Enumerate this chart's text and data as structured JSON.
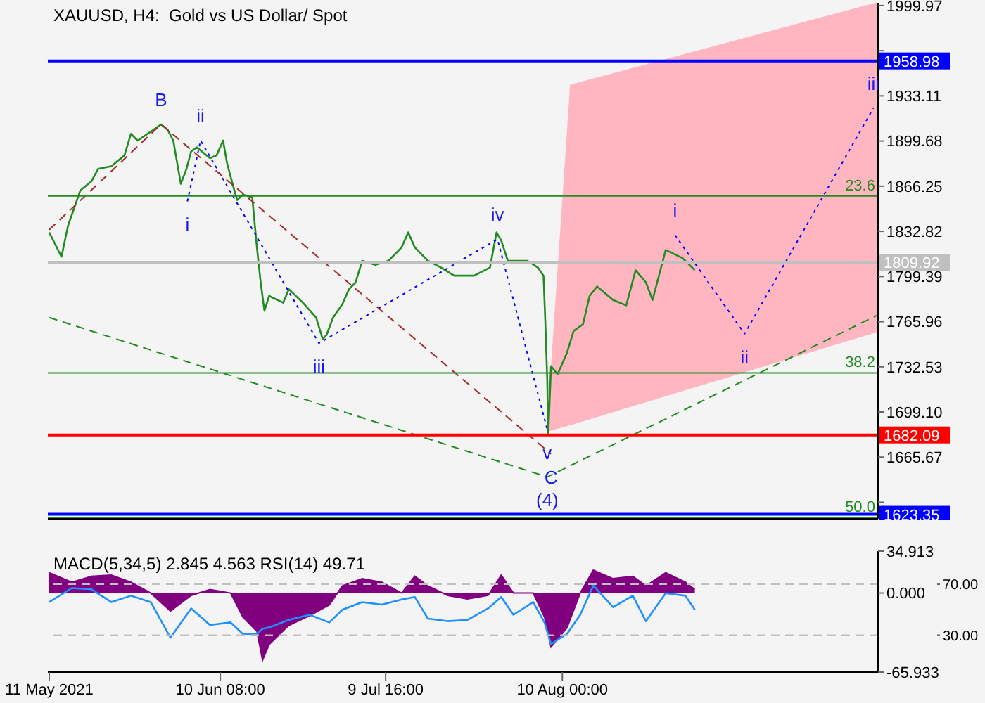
{
  "chart_data": [
    {
      "type": "line",
      "title": "XAUUSD, H4:  Gold vs US Dollar/ Spot",
      "xlim": [
        "2021-05-10T18:00",
        "2021-10-05T00:00"
      ],
      "ylim": [
        1620,
        2002
      ],
      "yticks": [
        1999.97,
        {
          "value": 1966.54,
          "label": null
        },
        1933.11,
        1899.68,
        1866.25,
        1832.82,
        1799.39,
        1765.96,
        1732.53,
        {
          "value": 1699.1,
          "label": "1699.10"
        },
        1665.67,
        {
          "value": 1632.24,
          "label": null
        }
      ],
      "tick_labels": "y",
      "grid": false,
      "series": [
        {
          "type": "area",
          "color": "#ffb6c1",
          "x": [
            "2021-08-07T08:00",
            "2021-08-11T12:00",
            "2021-10-05T00:00"
          ],
          "values": [
            null,
            null,
            null
          ],
          "lower": [
            1685,
            1690,
            1759
          ],
          "upper": [
            1685,
            1941,
            2002
          ]
        },
        {
          "color": "#228b22",
          "x": [
            "2021-05-11T00:00",
            "2021-05-13T04:00",
            "2021-05-14T08:00",
            "2021-05-15T16:00",
            "2021-05-16T12:00",
            "2021-05-18T12:00",
            "2021-05-19T16:00",
            "2021-05-22T00:00",
            "2021-05-24T08:00",
            "2021-05-25T12:00",
            "2021-05-26T16:00",
            "2021-05-29T12:00",
            "2021-05-30T20:00",
            "2021-06-01T00:00",
            "2021-06-02T00:00",
            "2021-06-02T16:00",
            "2021-06-03T08:00",
            "2021-06-04T08:00",
            "2021-06-05T04:00",
            "2021-06-06T04:00",
            "2021-06-08T12:00",
            "2021-06-09T16:00",
            "2021-06-10T20:00",
            "2021-06-11T12:00",
            "2021-06-12T12:00",
            "2021-06-13T08:00",
            "2021-06-14T08:00",
            "2021-06-16T00:00",
            "2021-06-16T20:00",
            "2021-06-17T12:00",
            "2021-06-18T04:00",
            "2021-06-19T00:00",
            "2021-06-21T12:00",
            "2021-06-22T12:00",
            "2021-06-25T00:00",
            "2021-06-27T08:00",
            "2021-06-28T12:00",
            "2021-06-29T04:00",
            "2021-06-30T08:00",
            "2021-07-02T00:00",
            "2021-07-03T04:00",
            "2021-07-04T08:00",
            "2021-07-05T12:00",
            "2021-07-07T20:00",
            "2021-07-10T04:00",
            "2021-07-12T12:00",
            "2021-07-13T16:00",
            "2021-07-14T20:00",
            "2021-07-17T04:00",
            "2021-07-19T12:00",
            "2021-07-21T20:00",
            "2021-07-25T08:00",
            "2021-07-28T04:00",
            "2021-07-29T08:00",
            "2021-07-30T04:00",
            "2021-07-31T08:00",
            "2021-08-03T20:00",
            "2021-08-05T16:00",
            "2021-08-06T16:00",
            "2021-08-07T00:00",
            "2021-08-07T08:00",
            "2021-08-07T12:00",
            "2021-08-08T00:00",
            "2021-08-09T04:00",
            "2021-08-10T20:00",
            "2021-08-12T00:00",
            "2021-08-13T16:00",
            "2021-08-14T20:00",
            "2021-08-16T04:00",
            "2021-08-19T00:00",
            "2021-08-21T08:00",
            "2021-08-23T00:00",
            "2021-08-24T20:00",
            "2021-08-26T00:00",
            "2021-08-28T08:00",
            "2021-08-31T08:00",
            "2021-09-02T12:00"
          ],
          "values": [
            1832,
            1814,
            1837,
            1853,
            1863,
            1870,
            1879,
            1881,
            1889,
            1905,
            1900,
            1908,
            1912,
            1908,
            1900,
            1884,
            1868,
            1879,
            1892,
            1895,
            1887,
            1889,
            1900,
            1884,
            1868,
            1856,
            1860,
            1858,
            1821,
            1795,
            1774,
            1785,
            1780,
            1790,
            1780,
            1769,
            1753,
            1756,
            1769,
            1779,
            1790,
            1795,
            1811,
            1808,
            1811,
            1821,
            1832,
            1821,
            1811,
            1806,
            1800,
            1800,
            1806,
            1832,
            1826,
            1811,
            1811,
            1806,
            1800,
            1764,
            1722,
            1682,
            1733,
            1727,
            1743,
            1759,
            1764,
            1785,
            1792,
            1782,
            1778,
            1804,
            1795,
            1782,
            1819,
            1813,
            1804
          ]
        },
        {
          "color": "#0000ff",
          "line_style": "dotted",
          "x": [
            "2021-06-04T12:00",
            "2021-06-06T20:00",
            "2021-06-27T20:00",
            "2021-07-29T12:00",
            "2021-08-07T08:00"
          ],
          "values": [
            1855,
            1900,
            1750,
            1827,
            1686
          ]
        },
        {
          "color": "#0000ff",
          "line_style": "dotted",
          "x": [
            "2021-08-30T00:00",
            "2021-09-11T08:00",
            "2021-10-04T04:00"
          ],
          "values": [
            1830,
            1757,
            1924
          ]
        },
        {
          "color": "#a52a2a",
          "line_style": "dashed",
          "x": [
            "2021-05-11T00:00",
            "2021-05-30T20:00",
            "2021-08-08T00:00"
          ],
          "values": [
            1834,
            1912,
            1668
          ]
        },
        {
          "color": "#228b22",
          "line_style": "dashed",
          "x": [
            "2021-05-11T00:00",
            "2021-08-07T08:00",
            "2021-10-05T00:00"
          ],
          "values": [
            1769,
            1651,
            1771
          ]
        }
      ],
      "ref_lines": [
        {
          "axis": "y",
          "value": 1958.98,
          "label": "1958.98",
          "color": "#0000ff"
        },
        {
          "axis": "y",
          "value": 1859,
          "color": "#228b22"
        },
        {
          "axis": "y",
          "value": 1809.92,
          "label": "1809.92",
          "color": "#c0c0c0"
        },
        {
          "axis": "y",
          "value": 1728,
          "color": "#228b22"
        },
        {
          "axis": "y",
          "value": 1682.09,
          "label": "1682.09",
          "color": "#ff0000"
        },
        {
          "axis": "y",
          "value": 1623.35,
          "label": "1623.35",
          "color": "#0000ff"
        },
        {
          "axis": "y",
          "value": 1621,
          "color": "#228b22"
        }
      ],
      "annotations": [
        {
          "text": "B",
          "x": "2021-05-30T20:00",
          "y": 1912
        },
        {
          "text": "i",
          "x": "2021-06-04T12:00",
          "y": 1855
        },
        {
          "text": "ii",
          "x": "2021-06-06T20:00",
          "y": 1900
        },
        {
          "text": "iii",
          "x": "2021-06-27T20:00",
          "y": 1750
        },
        {
          "text": "iv",
          "x": "2021-07-29T12:00",
          "y": 1827
        },
        {
          "text": "v",
          "x": "2021-08-07T08:00",
          "y": 1686
        },
        {
          "text": "C",
          "x": "2021-08-08T00:00",
          "y": 1668
        },
        {
          "text": "(4)",
          "x": "2021-08-07T08:00",
          "y": 1651
        },
        {
          "text": "i",
          "x": "2021-08-30T00:00",
          "y": 1830
        },
        {
          "text": "ii",
          "x": "2021-09-11T08:00",
          "y": 1757
        },
        {
          "text": "iii",
          "x": "2021-10-04T04:00",
          "y": 1924
        },
        {
          "text": "23.6",
          "x": "2021-10-04T12:00",
          "y": 1859
        },
        {
          "text": "38.2",
          "x": "2021-10-04T12:00",
          "y": 1728
        },
        {
          "text": "50.0",
          "x": "2021-10-04T12:00",
          "y": 1621
        }
      ]
    },
    {
      "type": "area",
      "title": "MACD(5,34,5) 2.845 4.563 RSI(14) 49.71",
      "xlim": [
        "2021-05-10T18:00",
        "2021-10-05T00:00"
      ],
      "xticks": [
        {
          "value": "2021-05-11T00:00",
          "label": "11 May 2021"
        },
        {
          "value": "2021-06-10T08:00",
          "label": "10 Jun 08:00"
        },
        {
          "value": "2021-07-09T16:00",
          "label": "9 Jul 16:00"
        },
        {
          "value": "2021-08-10T00:00",
          "label": "10 Aug 00:00"
        }
      ],
      "ylim": [
        -65.933,
        34.913
      ],
      "yticks": [
        34.913,
        {
          "value": 0,
          "label": "0.000"
        },
        -65.933
      ],
      "y2lim": [
        1,
        96
      ],
      "y2ticks": [
        {
          "value": 70,
          "label": "70.00"
        },
        {
          "value": 30,
          "label": "30.00"
        }
      ],
      "grid": false,
      "x": [
        "2021-05-11T00:00",
        "2021-05-15T00:00",
        "2021-05-18T12:00",
        "2021-05-22T00:00",
        "2021-05-25T12:00",
        "2021-05-29T00:00",
        "2021-06-01T12:00",
        "2021-06-05T04:00",
        "2021-06-08T12:00",
        "2021-06-12T04:00",
        "2021-06-14T08:00",
        "2021-06-16T20:00",
        "2021-06-17T20:00",
        "2021-06-19T00:00",
        "2021-06-22T12:00",
        "2021-06-26T04:00",
        "2021-06-29T16:00",
        "2021-07-02T00:00",
        "2021-07-05T12:00",
        "2021-07-09T00:00",
        "2021-07-12T12:00",
        "2021-07-14T20:00",
        "2021-07-17T04:00",
        "2021-07-20T16:00",
        "2021-07-24T04:00",
        "2021-07-27T20:00",
        "2021-07-30T04:00",
        "2021-08-01T08:00",
        "2021-08-04T20:00",
        "2021-08-06T20:00",
        "2021-08-08T00:00",
        "2021-08-10T20:00",
        "2021-08-13T04:00",
        "2021-08-15T12:00",
        "2021-08-19T00:00",
        "2021-08-22T12:00",
        "2021-08-24T20:00",
        "2021-08-28T08:00",
        "2021-08-31T20:00",
        "2021-09-02T12:00"
      ],
      "series": [
        {
          "color": "#800080",
          "values": [
            17,
            9,
            14,
            15,
            9,
            0,
            -15,
            -2,
            3,
            0,
            -20,
            -32,
            -56,
            -43,
            -27,
            -19,
            -10,
            6,
            12,
            9,
            0,
            14,
            6,
            -2,
            -5,
            -2,
            15,
            0,
            0,
            -20,
            -45,
            -29,
            0,
            19,
            12,
            14,
            6,
            17,
            9,
            3
          ]
        },
        {
          "type": "line",
          "axis": "y2",
          "color": "#1e90ff",
          "values": [
            56,
            67,
            66,
            56,
            61,
            56,
            28,
            51,
            38,
            40,
            31,
            31,
            35,
            36,
            42,
            46,
            40,
            50,
            56,
            54,
            58,
            60,
            43,
            41,
            42,
            51,
            60,
            46,
            56,
            40,
            23,
            31,
            46,
            69,
            52,
            61,
            41,
            63,
            61,
            50
          ]
        }
      ],
      "ref_lines": [
        {
          "axis": "y2",
          "value": 70,
          "color": "#c0c0c0",
          "line_style": "dashed"
        },
        {
          "axis": "y2",
          "value": 30,
          "color": "#c0c0c0",
          "line_style": "dashed"
        }
      ]
    }
  ]
}
